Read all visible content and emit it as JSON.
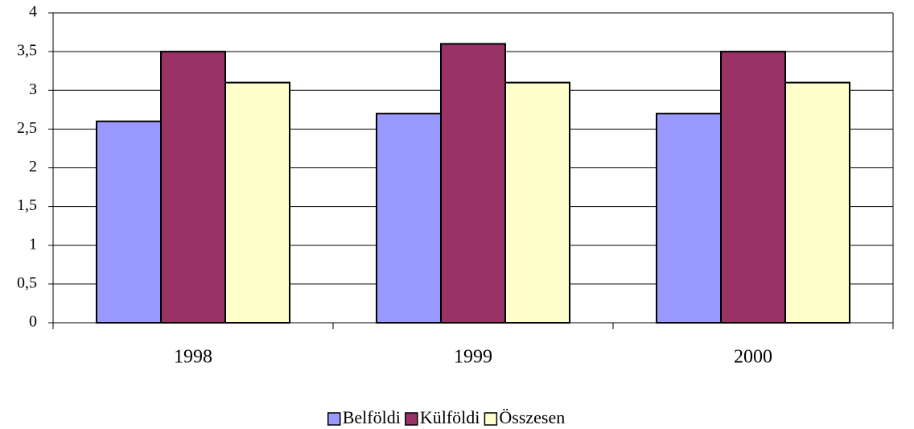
{
  "chart_data": {
    "type": "bar",
    "categories": [
      "1998",
      "1999",
      "2000"
    ],
    "series": [
      {
        "name": "Belföldi",
        "color": "#9999ff",
        "values": [
          2.6,
          2.7,
          2.7
        ]
      },
      {
        "name": "Külföldi",
        "color": "#993366",
        "values": [
          3.5,
          3.6,
          3.5
        ]
      },
      {
        "name": "Összesen",
        "color": "#ffffcc",
        "values": [
          3.1,
          3.1,
          3.1
        ]
      }
    ],
    "ylim": [
      0,
      4
    ],
    "yticks": [
      0,
      {
        "value": 0.5,
        "label": "0,5"
      },
      1,
      {
        "value": 1.5,
        "label": "1,5"
      },
      2,
      {
        "value": 2.5,
        "label": "2,5"
      },
      3,
      {
        "value": 3.5,
        "label": "3,5"
      },
      4
    ],
    "grid": true,
    "legend": "bottom"
  }
}
